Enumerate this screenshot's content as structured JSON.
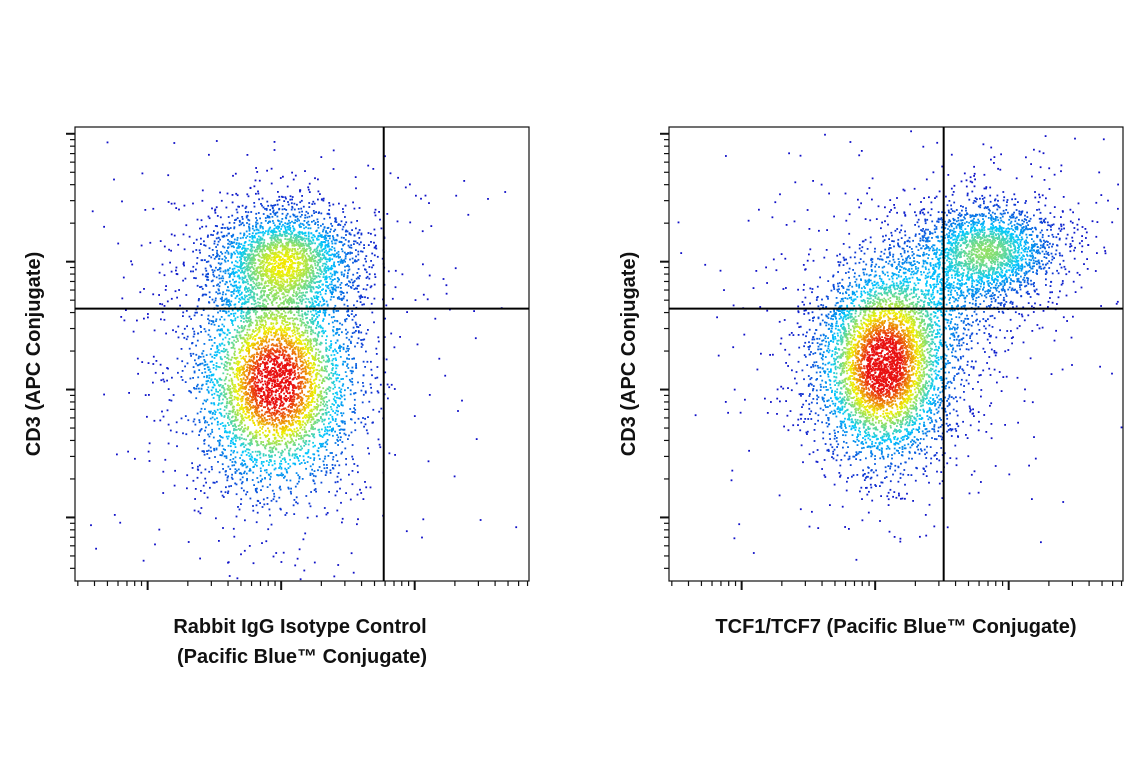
{
  "chart_data": [
    {
      "type": "scatter",
      "xlabel_lines": [
        "Rabbit IgG Isotype Control",
        "(Pacific Blue™ Conjugate)"
      ],
      "ylabel": "CD3 (APC Conjugate)",
      "x_scale": "log",
      "y_scale": "log",
      "tick_labels_shown": false,
      "quadrant_gate": {
        "x": 0.68,
        "y": 0.6
      },
      "populations": [
        {
          "name": "",
          "center": [
            0.46,
            0.71
          ],
          "spread": [
            0.085,
            0.06
          ],
          "count": 2600
        },
        {
          "name": "",
          "center": [
            0.44,
            0.44
          ],
          "spread": [
            0.09,
            0.12
          ],
          "count": 4600
        }
      ],
      "colors": {
        "low": "#1010c8",
        "mid": "#00c8ff",
        "high_mid": "#f0f000",
        "high": "#e81010"
      }
    },
    {
      "type": "scatter",
      "xlabel_lines": [
        "TCF1/TCF7 (Pacific Blue™ Conjugate)"
      ],
      "ylabel": "CD3 (APC Conjugate)",
      "x_scale": "log",
      "y_scale": "log",
      "tick_labels_shown": false,
      "quadrant_gate": {
        "x": 0.605,
        "y": 0.6
      },
      "populations": [
        {
          "name": "",
          "center": [
            0.7,
            0.73
          ],
          "spread": [
            0.08,
            0.055
          ],
          "count": 2200
        },
        {
          "name": "",
          "center": [
            0.47,
            0.47
          ],
          "spread": [
            0.075,
            0.105
          ],
          "count": 4600
        },
        {
          "name": "",
          "center": [
            0.56,
            0.62
          ],
          "spread": [
            0.1,
            0.08
          ],
          "count": 900
        }
      ],
      "colors": {
        "low": "#1010c8",
        "mid": "#00c8ff",
        "high_mid": "#f0f000",
        "high": "#e81010"
      }
    }
  ]
}
